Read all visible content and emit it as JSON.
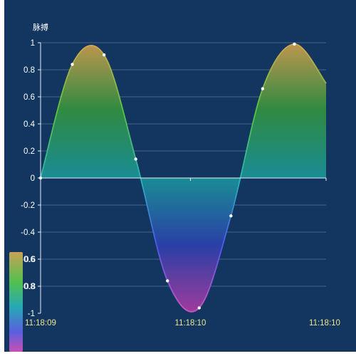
{
  "chart_data": {
    "type": "area",
    "ylabel": "脉搏",
    "ylim": [
      -1,
      1
    ],
    "yticks": [
      "1",
      "0.8",
      "0.6",
      "0.4",
      "0.2",
      "0",
      "-0.2",
      "-0.4",
      "-0.6",
      "-0.8",
      "-1"
    ],
    "xticks": [
      "11:18:09",
      "11:18:10",
      "11:18:10"
    ],
    "xrange": [
      0,
      9
    ],
    "series": [
      {
        "x": [
          0,
          1,
          2,
          3,
          4,
          5,
          6,
          7,
          8
        ],
        "values": [
          0,
          0.84,
          0.91,
          0.14,
          -0.76,
          -0.96,
          -0.28,
          0.66,
          0.99
        ],
        "tail_value": 0.7
      }
    ],
    "visual_map": {
      "labels": [
        "0.6",
        "0.8"
      ],
      "colors": [
        "#c8a256",
        "#52c04e",
        "#26a9b4",
        "#5b5fe0",
        "#c94fb5"
      ]
    }
  }
}
